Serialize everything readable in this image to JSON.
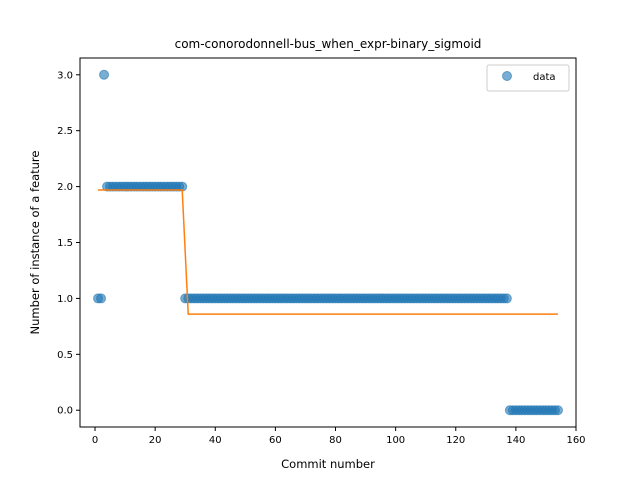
{
  "chart_data": {
    "type": "scatter",
    "title": "com-conorodonnell-bus_when_expr-binary_sigmoid",
    "xlabel": "Commit number",
    "ylabel": "Number of instance of a feature",
    "xlim": [
      -5,
      160
    ],
    "ylim": [
      -0.15,
      3.15
    ],
    "xticks": [
      0,
      20,
      40,
      60,
      80,
      100,
      120,
      140,
      160
    ],
    "yticks": [
      0.0,
      0.5,
      1.0,
      1.5,
      2.0,
      2.5,
      3.0
    ],
    "xtick_labels": [
      "0",
      "20",
      "40",
      "60",
      "80",
      "100",
      "120",
      "140",
      "160"
    ],
    "ytick_labels": [
      "0.0",
      "0.5",
      "1.0",
      "1.5",
      "2.0",
      "2.5",
      "3.0"
    ],
    "legend": {
      "position": "top-right",
      "entries": [
        "data"
      ]
    },
    "colors": {
      "data": "#1f77b4",
      "fit": "#ff7f0e"
    },
    "series": [
      {
        "name": "data",
        "kind": "scatter",
        "segments": [
          {
            "x_start": 1,
            "x_end": 2,
            "y": 1
          },
          {
            "x_start": 3,
            "x_end": 3,
            "y": 3
          },
          {
            "x_start": 4,
            "x_end": 29,
            "y": 2
          },
          {
            "x_start": 30,
            "x_end": 137,
            "y": 1
          },
          {
            "x_start": 138,
            "x_end": 154,
            "y": 0
          }
        ]
      },
      {
        "kind": "line",
        "x": [
          1,
          29,
          31,
          154
        ],
        "y": [
          1.97,
          1.97,
          0.86,
          0.86
        ]
      }
    ]
  }
}
